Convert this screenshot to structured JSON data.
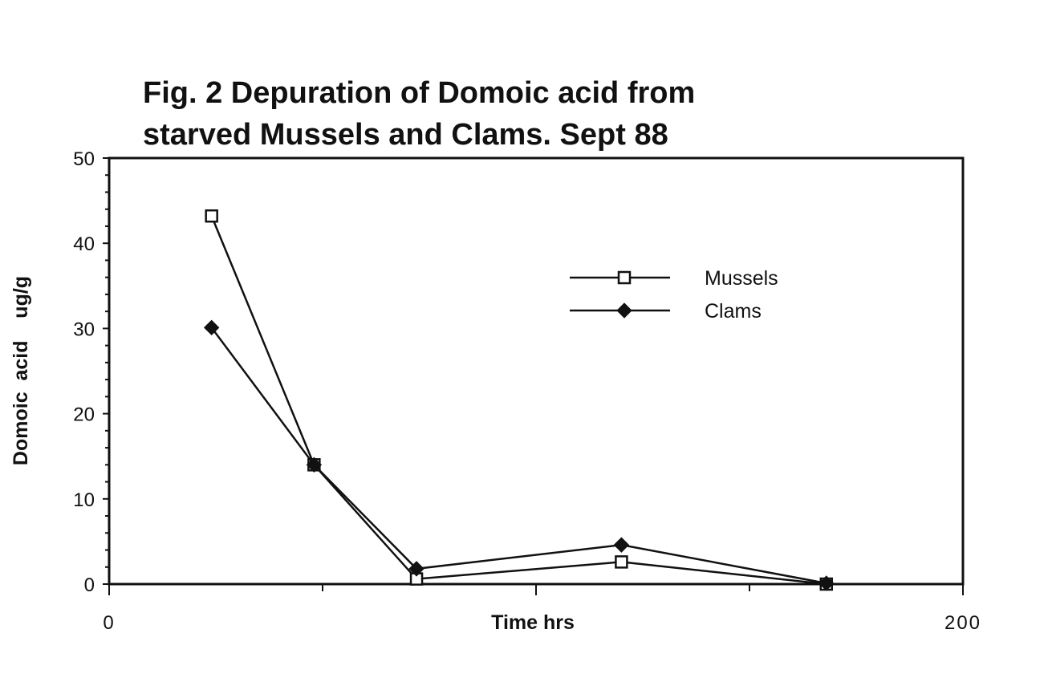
{
  "chart_data": {
    "type": "line",
    "title": "Fig. 2  Depuration of Domoic acid from",
    "subtitle": "starved Mussels and Clams. Sept 88",
    "xlabel": "Time hrs",
    "ylabel": "Domoic  acid    ug/g",
    "xlim": [
      0,
      200
    ],
    "ylim": [
      0,
      50
    ],
    "x_ticks": [
      0,
      200
    ],
    "y_ticks": [
      0,
      10,
      20,
      30,
      40,
      50
    ],
    "grid": false,
    "legend_position": "top-right",
    "series": [
      {
        "name": "Mussels",
        "marker": "open-square",
        "x": [
          24,
          48,
          72,
          120,
          168
        ],
        "y": [
          43.2,
          14,
          0.6,
          2.6,
          0
        ]
      },
      {
        "name": "Clams",
        "marker": "filled-diamond",
        "x": [
          24,
          48,
          72,
          120,
          168
        ],
        "y": [
          30.1,
          14,
          1.8,
          4.6,
          0.1
        ]
      }
    ]
  }
}
